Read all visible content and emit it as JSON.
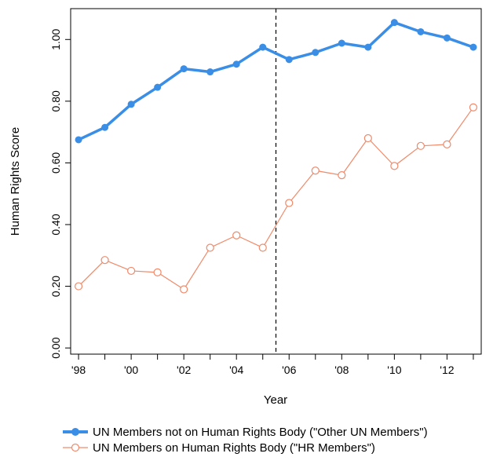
{
  "chart_data": {
    "type": "line",
    "title": "",
    "xlabel": "Year",
    "ylabel": "Human Rights Score",
    "x": [
      1998,
      1999,
      2000,
      2001,
      2002,
      2003,
      2004,
      2005,
      2006,
      2007,
      2008,
      2009,
      2010,
      2011,
      2012,
      2013
    ],
    "xlim": [
      1997.7,
      2013.3
    ],
    "ylim": [
      -0.02,
      1.1
    ],
    "x_ticks": [
      1998,
      2000,
      2002,
      2004,
      2006,
      2008,
      2010,
      2012
    ],
    "x_tick_labels": [
      "'98",
      "'00",
      "'02",
      "'04",
      "'06",
      "'08",
      "'10",
      "'12"
    ],
    "y_ticks": [
      0.0,
      0.2,
      0.4,
      0.6,
      0.8,
      1.0
    ],
    "y_tick_labels": [
      "0.00",
      "0.20",
      "0.40",
      "0.60",
      "0.80",
      "1.00"
    ],
    "vline_x": 2005.5,
    "legend_position": "bottom",
    "series": [
      {
        "name": "UN Members not on Human Rights Body (\"Other UN Members\")",
        "color": "#3a8ee6",
        "marker": "filled-circle",
        "values": [
          0.675,
          0.715,
          0.79,
          0.845,
          0.905,
          0.895,
          0.92,
          0.975,
          0.935,
          0.958,
          0.988,
          0.975,
          1.055,
          1.025,
          1.005,
          0.975
        ]
      },
      {
        "name": "UN Members on Human Rights Body (\"HR Members\")",
        "color": "#f08a6a",
        "marker": "open-circle",
        "values": [
          0.2,
          0.285,
          0.25,
          0.245,
          0.19,
          0.325,
          0.365,
          0.325,
          0.47,
          0.575,
          0.56,
          0.68,
          0.59,
          0.655,
          0.66,
          0.78
        ]
      }
    ]
  }
}
